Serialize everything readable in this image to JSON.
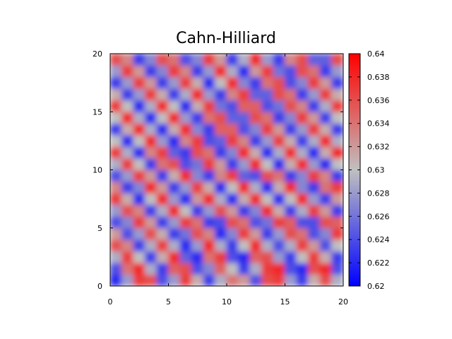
{
  "chart_data": {
    "type": "heatmap",
    "title": "Cahn-Hilliard",
    "xlabel": "",
    "ylabel": "",
    "xlim": [
      0,
      20
    ],
    "ylim": [
      0,
      20
    ],
    "x_ticks": [
      "0",
      "5",
      "10",
      "15",
      "20"
    ],
    "y_ticks": [
      "0",
      "5",
      "10",
      "15",
      "20"
    ],
    "colorbar": {
      "range": [
        0.62,
        0.64
      ],
      "tick_labels": [
        "0.62",
        "0.622",
        "0.624",
        "0.626",
        "0.628",
        "0.63",
        "0.632",
        "0.634",
        "0.636",
        "0.638",
        "0.64"
      ],
      "colors": {
        "low": "#0000ff",
        "mid": "#c0c0c0",
        "high": "#ff0000"
      }
    },
    "grid_size": [
      20,
      20
    ],
    "z": [
      [
        0.622,
        0.628,
        0.637,
        0.636,
        0.624,
        0.628,
        0.637,
        0.631,
        0.623,
        0.629,
        0.634,
        0.632,
        0.624,
        0.636,
        0.637,
        0.628,
        0.623,
        0.631,
        0.636,
        0.629
      ],
      [
        0.624,
        0.634,
        0.638,
        0.629,
        0.623,
        0.635,
        0.636,
        0.624,
        0.627,
        0.635,
        0.63,
        0.623,
        0.629,
        0.637,
        0.638,
        0.624,
        0.622,
        0.636,
        0.638,
        0.624
      ],
      [
        0.629,
        0.637,
        0.63,
        0.623,
        0.631,
        0.638,
        0.625,
        0.622,
        0.634,
        0.637,
        0.624,
        0.622,
        0.635,
        0.636,
        0.628,
        0.623,
        0.63,
        0.637,
        0.631,
        0.623
      ],
      [
        0.636,
        0.633,
        0.623,
        0.629,
        0.637,
        0.629,
        0.622,
        0.628,
        0.638,
        0.629,
        0.623,
        0.63,
        0.638,
        0.629,
        0.624,
        0.629,
        0.637,
        0.632,
        0.624,
        0.63
      ],
      [
        0.632,
        0.624,
        0.628,
        0.636,
        0.631,
        0.623,
        0.626,
        0.636,
        0.633,
        0.622,
        0.627,
        0.637,
        0.632,
        0.623,
        0.628,
        0.636,
        0.634,
        0.624,
        0.627,
        0.637
      ],
      [
        0.624,
        0.627,
        0.637,
        0.632,
        0.623,
        0.628,
        0.637,
        0.634,
        0.623,
        0.624,
        0.636,
        0.634,
        0.624,
        0.626,
        0.637,
        0.635,
        0.624,
        0.624,
        0.636,
        0.635
      ],
      [
        0.628,
        0.636,
        0.633,
        0.623,
        0.629,
        0.638,
        0.63,
        0.623,
        0.628,
        0.636,
        0.632,
        0.623,
        0.627,
        0.638,
        0.631,
        0.623,
        0.629,
        0.637,
        0.632,
        0.623
      ],
      [
        0.637,
        0.631,
        0.622,
        0.63,
        0.638,
        0.628,
        0.622,
        0.632,
        0.638,
        0.629,
        0.622,
        0.631,
        0.638,
        0.63,
        0.622,
        0.63,
        0.638,
        0.628,
        0.623,
        0.632
      ],
      [
        0.633,
        0.623,
        0.627,
        0.638,
        0.632,
        0.623,
        0.628,
        0.637,
        0.631,
        0.622,
        0.63,
        0.638,
        0.629,
        0.622,
        0.631,
        0.638,
        0.627,
        0.623,
        0.634,
        0.637
      ],
      [
        0.624,
        0.628,
        0.637,
        0.632,
        0.623,
        0.631,
        0.638,
        0.627,
        0.623,
        0.633,
        0.637,
        0.625,
        0.624,
        0.636,
        0.634,
        0.623,
        0.627,
        0.637,
        0.633,
        0.623
      ],
      [
        0.629,
        0.637,
        0.63,
        0.623,
        0.634,
        0.636,
        0.624,
        0.626,
        0.637,
        0.632,
        0.623,
        0.628,
        0.638,
        0.63,
        0.622,
        0.631,
        0.638,
        0.628,
        0.622,
        0.63
      ],
      [
        0.637,
        0.629,
        0.622,
        0.633,
        0.637,
        0.625,
        0.623,
        0.636,
        0.634,
        0.623,
        0.627,
        0.638,
        0.631,
        0.622,
        0.629,
        0.638,
        0.629,
        0.622,
        0.631,
        0.638
      ],
      [
        0.63,
        0.622,
        0.63,
        0.638,
        0.628,
        0.622,
        0.633,
        0.637,
        0.624,
        0.625,
        0.637,
        0.633,
        0.623,
        0.628,
        0.637,
        0.631,
        0.623,
        0.629,
        0.638,
        0.629
      ],
      [
        0.623,
        0.631,
        0.638,
        0.629,
        0.622,
        0.631,
        0.638,
        0.627,
        0.623,
        0.635,
        0.635,
        0.624,
        0.627,
        0.637,
        0.632,
        0.623,
        0.628,
        0.637,
        0.631,
        0.623
      ],
      [
        0.63,
        0.638,
        0.629,
        0.622,
        0.63,
        0.638,
        0.628,
        0.623,
        0.634,
        0.636,
        0.625,
        0.625,
        0.636,
        0.634,
        0.623,
        0.627,
        0.637,
        0.632,
        0.623,
        0.63
      ],
      [
        0.637,
        0.63,
        0.622,
        0.629,
        0.638,
        0.63,
        0.622,
        0.631,
        0.637,
        0.626,
        0.624,
        0.635,
        0.635,
        0.624,
        0.626,
        0.636,
        0.633,
        0.623,
        0.629,
        0.637
      ],
      [
        0.631,
        0.623,
        0.628,
        0.637,
        0.631,
        0.623,
        0.629,
        0.638,
        0.628,
        0.623,
        0.633,
        0.637,
        0.625,
        0.625,
        0.636,
        0.634,
        0.623,
        0.628,
        0.637,
        0.631
      ],
      [
        0.623,
        0.628,
        0.637,
        0.632,
        0.623,
        0.628,
        0.637,
        0.631,
        0.622,
        0.63,
        0.638,
        0.627,
        0.623,
        0.634,
        0.636,
        0.624,
        0.627,
        0.637,
        0.632,
        0.623
      ],
      [
        0.628,
        0.637,
        0.632,
        0.623,
        0.627,
        0.637,
        0.633,
        0.623,
        0.628,
        0.638,
        0.629,
        0.622,
        0.632,
        0.637,
        0.626,
        0.624,
        0.636,
        0.634,
        0.623,
        0.628
      ],
      [
        0.636,
        0.633,
        0.623,
        0.627,
        0.636,
        0.634,
        0.624,
        0.627,
        0.637,
        0.632,
        0.623,
        0.629,
        0.638,
        0.628,
        0.623,
        0.633,
        0.636,
        0.625,
        0.625,
        0.636
      ]
    ]
  }
}
